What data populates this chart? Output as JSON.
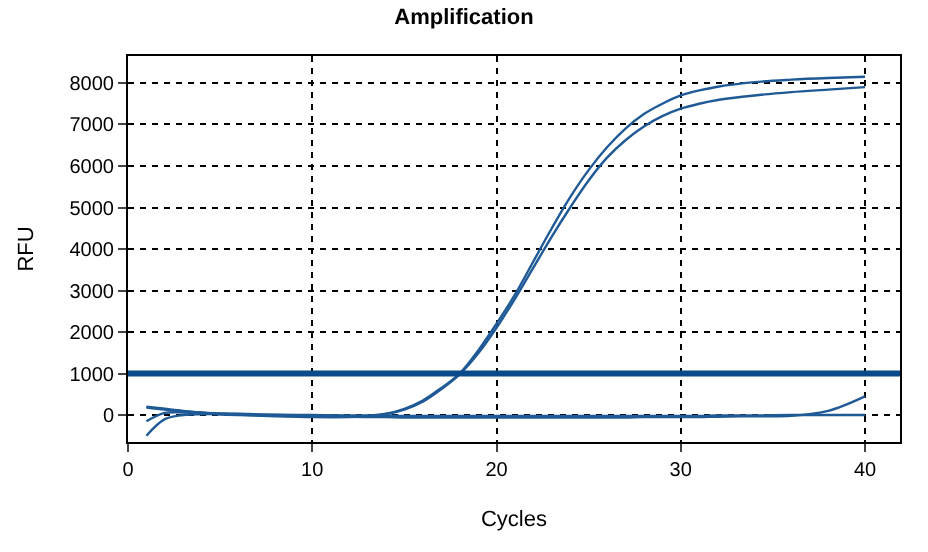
{
  "chart_data": {
    "type": "line",
    "title": "Amplification",
    "xlabel": "Cycles",
    "ylabel": "RFU",
    "x": [
      1,
      2,
      3,
      4,
      5,
      6,
      8,
      10,
      12,
      13,
      14,
      15,
      16,
      17,
      18,
      19,
      20,
      21,
      22,
      23,
      24,
      25,
      26,
      27,
      28,
      29,
      30,
      31,
      32,
      34,
      36,
      38,
      40
    ],
    "series": [
      {
        "color": "#1f5a96",
        "values": [
          200,
          150,
          100,
          60,
          30,
          10,
          -20,
          -40,
          -40,
          -20,
          30,
          150,
          350,
          650,
          1000,
          1550,
          2200,
          2900,
          3700,
          4500,
          5250,
          5900,
          6450,
          6900,
          7250,
          7500,
          7700,
          7820,
          7910,
          8020,
          8080,
          8120,
          8150
        ]
      },
      {
        "color": "#1f5a96",
        "values": [
          180,
          130,
          90,
          50,
          20,
          0,
          -30,
          -50,
          -50,
          -30,
          20,
          130,
          320,
          620,
          980,
          1480,
          2100,
          2800,
          3550,
          4300,
          5000,
          5650,
          6200,
          6620,
          6950,
          7200,
          7380,
          7500,
          7590,
          7700,
          7780,
          7840,
          7900
        ]
      },
      {
        "color": "#1f5a96",
        "values": [
          -500,
          -100,
          0,
          20,
          20,
          10,
          0,
          -20,
          -40,
          -50,
          -50,
          -60,
          -60,
          -60,
          -60,
          -60,
          -60,
          -60,
          -60,
          -60,
          -60,
          -60,
          -60,
          -60,
          -50,
          -50,
          -50,
          -50,
          -40,
          -30,
          -20,
          100,
          450
        ]
      },
      {
        "color": "#1f5a96",
        "values": [
          -150,
          50,
          60,
          50,
          40,
          30,
          10,
          0,
          -10,
          -10,
          -10,
          -20,
          -20,
          -20,
          -20,
          -20,
          -20,
          -20,
          -20,
          -20,
          -20,
          -20,
          -20,
          -20,
          -20,
          -20,
          -20,
          -20,
          -10,
          -10,
          0,
          0,
          0
        ]
      }
    ],
    "ref_lines": [
      {
        "axis": "y",
        "value": 1000,
        "color": "#0a4a8a"
      }
    ],
    "xlim": [
      0,
      41.9
    ],
    "xticks": [
      0,
      10,
      20,
      30,
      40
    ],
    "ylim": [
      -650,
      8650
    ],
    "yticks": [
      0,
      1000,
      2000,
      3000,
      4000,
      5000,
      6000,
      7000,
      8000
    ],
    "grid": true,
    "marker": "none",
    "line_style": "solid"
  }
}
